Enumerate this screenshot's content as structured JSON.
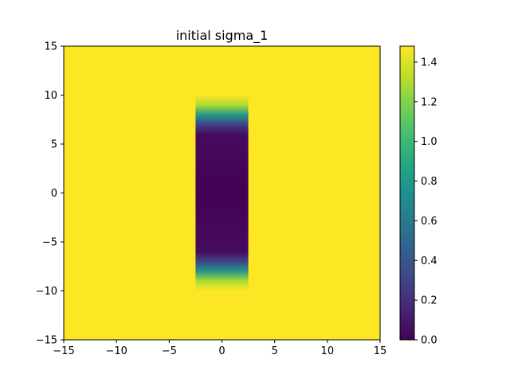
{
  "chart_data": {
    "type": "heatmap",
    "title": "initial sigma_1",
    "xlabel": "",
    "ylabel": "",
    "xlim": [
      -15,
      15
    ],
    "ylim": [
      -15,
      15
    ],
    "x_ticks": [
      -15,
      -10,
      -5,
      0,
      5,
      10,
      15
    ],
    "y_ticks": [
      -15,
      -10,
      -5,
      0,
      5,
      10,
      15
    ],
    "x_tick_labels": [
      "−15",
      "−10",
      "−5",
      "0",
      "5",
      "10",
      "15"
    ],
    "y_tick_labels": [
      "−15",
      "−10",
      "−5",
      "0",
      "5",
      "10",
      "15"
    ],
    "colormap": "viridis",
    "grid": false,
    "background_value": 1.48,
    "region": {
      "x_range": [
        -2.5,
        2.5
      ],
      "y_range": [
        -10,
        10
      ],
      "inner_value": 0.0,
      "profile_y": [
        0,
        6,
        7,
        8,
        9,
        10
      ],
      "profile_values": [
        0.0,
        0.05,
        0.3,
        0.8,
        1.3,
        1.48
      ]
    },
    "colorbar": {
      "range": [
        0.0,
        1.48
      ],
      "ticks": [
        0.0,
        0.2,
        0.4,
        0.6,
        0.8,
        1.0,
        1.2,
        1.4
      ],
      "tick_labels": [
        "0.0",
        "0.2",
        "0.4",
        "0.6",
        "0.8",
        "1.0",
        "1.2",
        "1.4"
      ]
    }
  }
}
